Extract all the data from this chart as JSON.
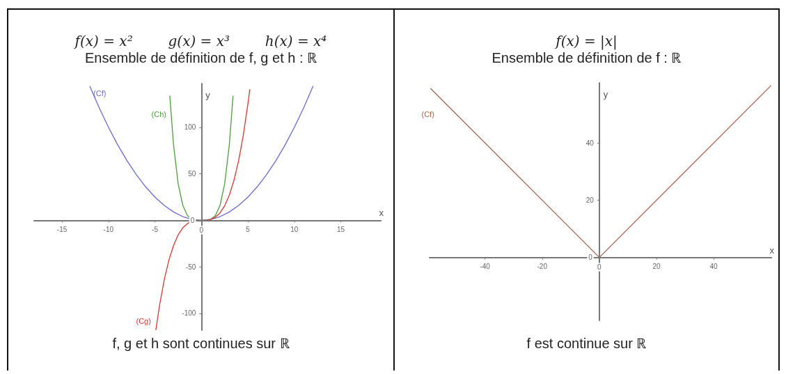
{
  "chart_data": [
    {
      "type": "line",
      "title": "f(x) = x²        g(x) = x³        h(x) = x⁴",
      "subtitle": "Ensemble de définition de f, g et h : ℝ",
      "xlabel": "x",
      "ylabel": "y",
      "annotations": [
        "f, g et h sont continues sur ℝ"
      ],
      "xlim": [
        -18,
        19.3
      ],
      "ylim": [
        -118,
        147
      ],
      "xticks": [
        -15,
        -10,
        -5,
        0,
        5,
        10,
        15
      ],
      "yticks": [
        -100,
        -50,
        0,
        50,
        100
      ],
      "grid": false,
      "legend": false,
      "marker": "none",
      "series": [
        {
          "name": "(Cf)",
          "color": "#6a6ad0",
          "x": [
            -12,
            -11,
            -10,
            -9,
            -8,
            -7,
            -6,
            -5,
            -4,
            -3,
            -2,
            -1,
            0,
            1,
            2,
            3,
            4,
            5,
            6,
            7,
            8,
            9,
            10,
            11,
            12
          ],
          "values": [
            144,
            121,
            100,
            81,
            64,
            49,
            36,
            25,
            16,
            9,
            4,
            1,
            0,
            1,
            4,
            9,
            16,
            25,
            36,
            49,
            64,
            81,
            100,
            121,
            144
          ]
        },
        {
          "name": "(Ch)",
          "color": "#4c9c3c",
          "x": [
            -3.4,
            -3,
            -2.5,
            -2,
            -1.5,
            -1,
            -0.5,
            0,
            0.5,
            1,
            1.5,
            2,
            2.5,
            3,
            3.4
          ],
          "values": [
            133.6,
            81,
            39.1,
            16,
            5.1,
            1,
            0.1,
            0,
            0.1,
            1,
            5.1,
            16,
            39.1,
            81,
            133.6
          ]
        },
        {
          "name": "(Cg)",
          "color": "#e03232",
          "x": [
            -4.9,
            -4.5,
            -4,
            -3.5,
            -3,
            -2.5,
            -2,
            -1.5,
            -1,
            -0.5,
            0,
            0.5,
            1,
            1.5,
            2,
            2.5,
            3,
            3.5,
            4,
            4.5,
            5,
            5.2
          ],
          "values": [
            -117.6,
            -91.1,
            -64,
            -42.9,
            -27,
            -15.6,
            -8,
            -3.4,
            -1,
            -0.1,
            0,
            0.1,
            1,
            3.4,
            8,
            15.6,
            27,
            42.9,
            64,
            91.1,
            125,
            140.6
          ]
        }
      ]
    },
    {
      "type": "line",
      "title": "f(x) = |x|",
      "subtitle": "Ensemble de définition de f : ℝ",
      "xlabel": "x",
      "ylabel": "y",
      "annotations": [
        "f est continue sur ℝ"
      ],
      "xlim": [
        -59.4,
        60.2
      ],
      "ylim": [
        -22,
        61
      ],
      "xticks": [
        -40,
        -20,
        0,
        20,
        40
      ],
      "yticks": [
        0,
        20,
        40
      ],
      "grid": false,
      "legend": false,
      "marker": "none",
      "series": [
        {
          "name": "(Cf)",
          "color": "#a8624c",
          "x": [
            -59,
            0,
            60
          ],
          "values": [
            59,
            0,
            60
          ]
        }
      ]
    }
  ]
}
